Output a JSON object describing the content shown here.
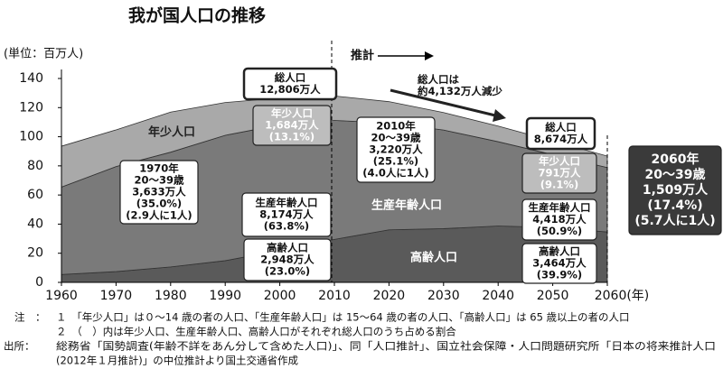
{
  "chart_data": {
    "type": "stacked-area",
    "title": "我が国人口の推移",
    "y_label": "(単位：百万人)",
    "x": [
      1960,
      1970,
      1980,
      1990,
      2000,
      2010,
      2020,
      2030,
      2040,
      2050,
      2060
    ],
    "series": [
      {
        "name": "高齢人口",
        "color": "#5a5a5a",
        "values": [
          5.4,
          7.4,
          10.6,
          14.9,
          22.0,
          29.5,
          36.1,
          36.9,
          38.7,
          37.7,
          34.6
        ]
      },
      {
        "name": "生産年齢人口",
        "color": "#7a7a7a",
        "values": [
          60.0,
          72.1,
          78.8,
          86.1,
          86.2,
          81.7,
          73.4,
          67.7,
          57.9,
          50.0,
          44.2
        ]
      },
      {
        "name": "年少人口",
        "color": "#a9a9a9",
        "values": [
          28.1,
          25.2,
          27.5,
          22.5,
          18.5,
          16.8,
          14.6,
          12.0,
          10.7,
          9.4,
          7.9
        ]
      }
    ],
    "xlim": [
      1960,
      2060
    ],
    "ylim": [
      0,
      140
    ],
    "xticks": [
      1960,
      1970,
      1980,
      1990,
      2000,
      2010,
      2020,
      2030,
      2040,
      2050,
      {
        "value": 2060,
        "label": "2060(年)"
      }
    ],
    "yticks": [
      0,
      20,
      40,
      60,
      80,
      100,
      120,
      140
    ],
    "projection_label": "推計",
    "annotations": [
      {
        "lines": [
          "総人口",
          "12,806万人"
        ]
      },
      {
        "lines": [
          "年少人口",
          "1,684万人",
          "(13.1%)"
        ]
      },
      {
        "lines": [
          "生産年齢人口",
          "8,174万人",
          "(63.8%)"
        ]
      },
      {
        "lines": [
          "高齢人口",
          "2,948万人",
          "(23.0%)"
        ]
      },
      {
        "lines": [
          "1970年",
          "20～39歳",
          "3,633万人",
          "(35.0%)",
          "(2.9人に1人)"
        ]
      },
      {
        "lines": [
          "2010年",
          "20～39歳",
          "3,220万人",
          "(25.1%)",
          "(4.0人に1人)"
        ]
      },
      {
        "lines": [
          "総人口は",
          "約4,132万人減少"
        ]
      },
      {
        "lines": [
          "総人口",
          "8,674万人"
        ]
      },
      {
        "lines": [
          "年少人口",
          "791万人",
          "(9.1%)"
        ]
      },
      {
        "lines": [
          "生産年齢人口",
          "4,418万人",
          "(50.9%)"
        ]
      },
      {
        "lines": [
          "高齢人口",
          "3,464万人",
          "(39.9%)"
        ]
      },
      {
        "lines": [
          "2060年",
          "20～39歳",
          "1,509万人",
          "(17.4%)",
          "(5.7人に1人)"
        ]
      }
    ]
  },
  "footnotes": {
    "note_label": "注　：",
    "notes": [
      "１　「年少人口」は０～14 歳の者の人口、「生産年齢人口」は 15～64 歳の者の人口、「高齢人口」は 65 歳以上の者の人口",
      "２　（　）内は年少人口、生産年齢人口、高齢人口がそれぞれ総人口のうち占める割合"
    ],
    "source_label": "出所：",
    "source": [
      "総務省「国勢調査(年齢不詳をあん分して含めた人口)」、同「人口推計」、国立社会保障・人口問題研究所「日本の将来推計人口",
      "(2012年１月推計)」の中位推計より国土交通省作成"
    ]
  }
}
